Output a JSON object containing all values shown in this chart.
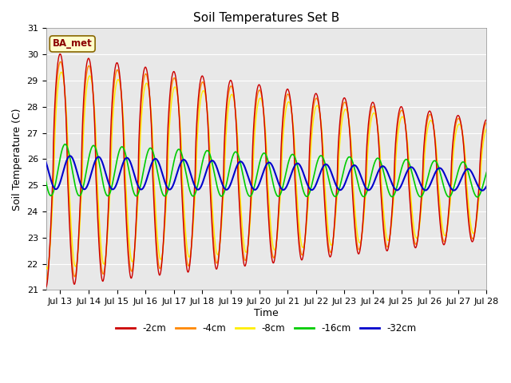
{
  "title": "Soil Temperatures Set B",
  "xlabel": "Time",
  "ylabel": "Soil Temperature (C)",
  "annotation": "BA_met",
  "ylim": [
    21.0,
    31.0
  ],
  "yticks": [
    21.0,
    22.0,
    23.0,
    24.0,
    25.0,
    26.0,
    27.0,
    28.0,
    29.0,
    30.0,
    31.0
  ],
  "colors": {
    "-2cm": "#cc0000",
    "-4cm": "#ff8800",
    "-8cm": "#ffee00",
    "-16cm": "#00cc00",
    "-32cm": "#0000cc"
  },
  "bg_color": "#e8e8e8",
  "xlim_start": 12.5,
  "xlim_end": 28.0,
  "num_points": 2000
}
